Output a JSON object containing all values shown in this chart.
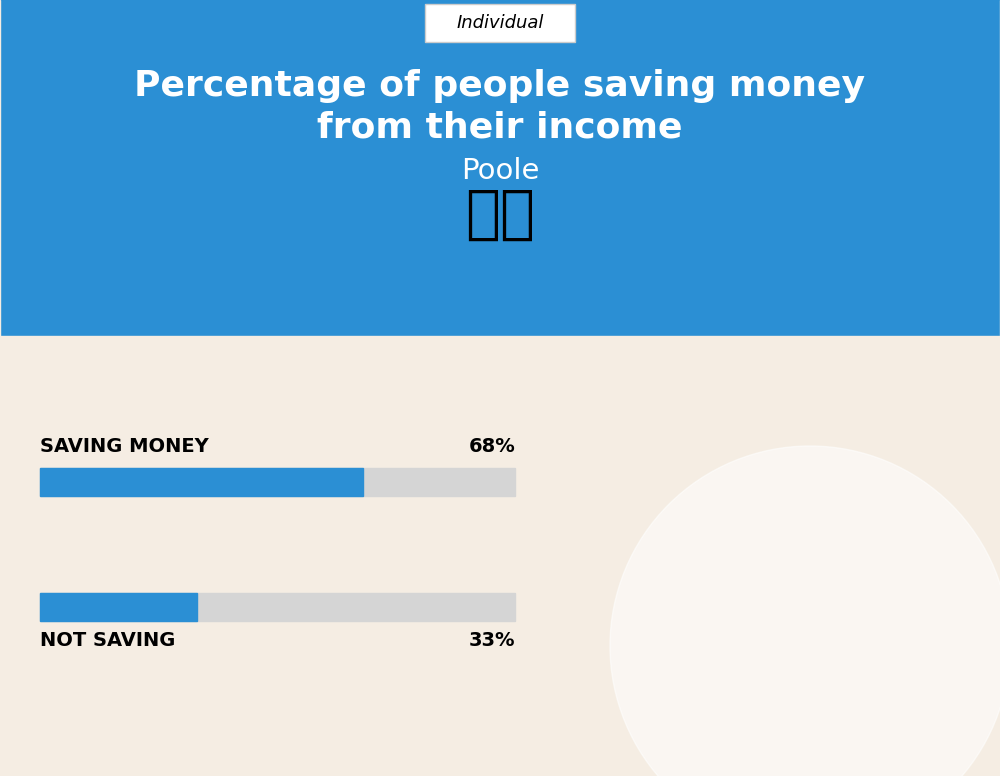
{
  "title_line1": "Percentage of people saving money",
  "title_line2": "from their income",
  "subtitle": "Poole",
  "tab_label": "Individual",
  "bg_color": "#F5EDE3",
  "circle_color": "#2B8FD4",
  "bar_bg_color": "#D5D5D5",
  "bar_fill_color": "#2B8FD4",
  "saving_label": "SAVING MONEY",
  "saving_value": 68,
  "saving_text": "68%",
  "not_saving_label": "NOT SAVING",
  "not_saving_value": 33,
  "not_saving_text": "33%",
  "title_color": "#FFFFFF",
  "label_color": "#000000",
  "tab_border_color": "#CCCCCC",
  "flag_emoji": "🇬🇧",
  "fig_width": 10.0,
  "fig_height": 7.76,
  "dpi": 100
}
